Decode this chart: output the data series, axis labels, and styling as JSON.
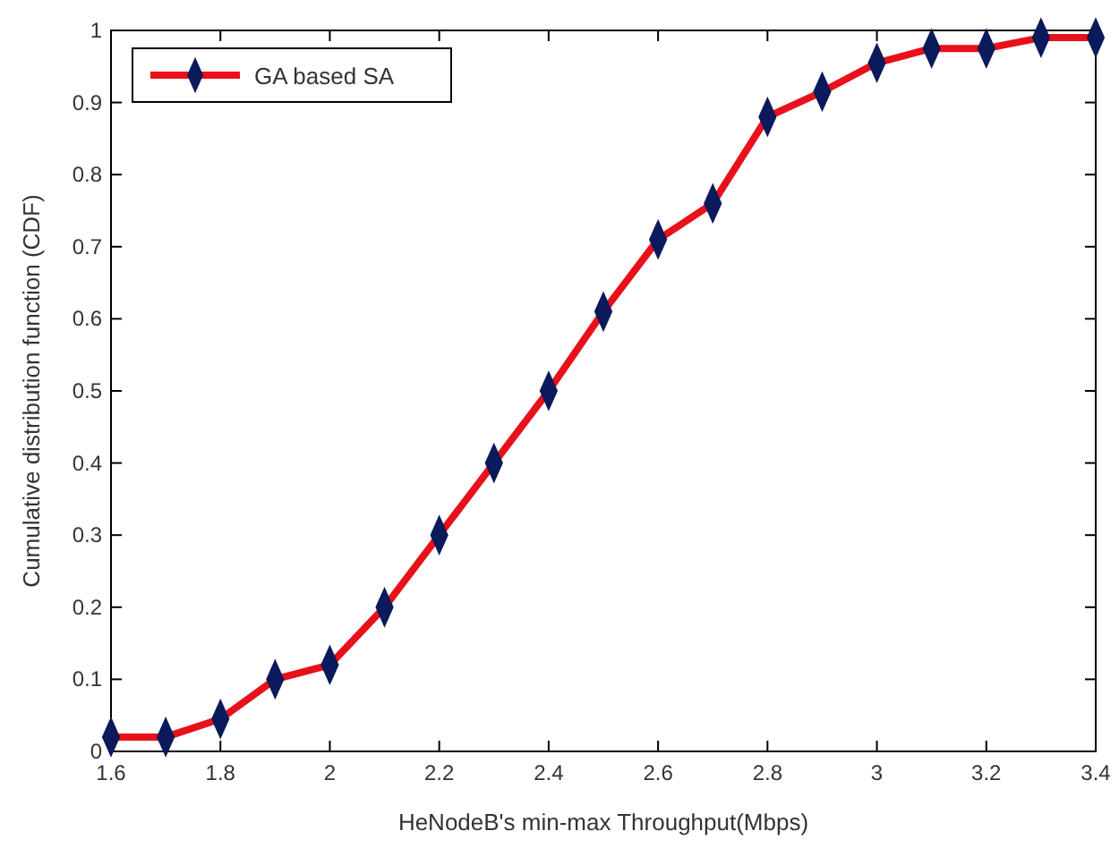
{
  "chart_data": {
    "type": "line",
    "xlabel": "HeNodeB's min-max Throughput(Mbps)",
    "ylabel": "Cumulative distribution function (CDF)",
    "x": [
      1.6,
      1.7,
      1.8,
      1.9,
      2.0,
      2.1,
      2.2,
      2.3,
      2.4,
      2.5,
      2.6,
      2.7,
      2.8,
      2.9,
      3.0,
      3.1,
      3.2,
      3.3,
      3.4
    ],
    "series": [
      {
        "name": "GA based SA",
        "color": "#e8101a",
        "values": [
          0.02,
          0.02,
          0.045,
          0.1,
          0.12,
          0.2,
          0.3,
          0.4,
          0.5,
          0.61,
          0.71,
          0.76,
          0.88,
          0.915,
          0.955,
          0.975,
          0.975,
          0.99,
          0.99
        ]
      }
    ],
    "xlim": [
      1.6,
      3.4
    ],
    "xticks": [
      1.6,
      1.8,
      2,
      2.2,
      2.4,
      2.6,
      2.8,
      3,
      3.2,
      3.4
    ],
    "ylim": [
      0,
      1
    ],
    "yticks": [
      0,
      0.1,
      0.2,
      0.3,
      0.4,
      0.5,
      0.6,
      0.7,
      0.8,
      0.9,
      1
    ],
    "grid": false,
    "legend": "top left",
    "marker": "diamond",
    "line_style": "solid"
  }
}
